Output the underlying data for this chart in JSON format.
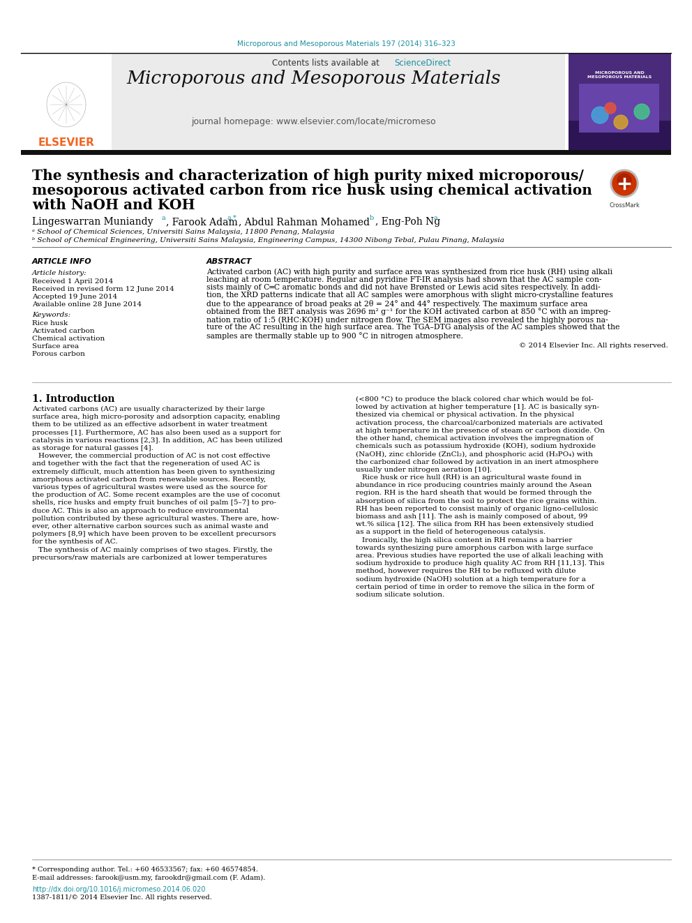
{
  "journal_ref": "Microporous and Mesoporous Materials 197 (2014) 316–323",
  "journal_ref_color": "#1a8fa0",
  "sciencedirect_color": "#1a8fa0",
  "journal_title": "Microporous and Mesoporous Materials",
  "elsevier_color": "#f26522",
  "paper_title_line1": "The synthesis and characterization of high purity mixed microporous/",
  "paper_title_line2": "mesoporous activated carbon from rice husk using chemical activation",
  "paper_title_line3": "with NaOH and KOH",
  "affil_a": "ᵃ School of Chemical Sciences, Universiti Sains Malaysia, 11800 Penang, Malaysia",
  "affil_b": "ᵇ School of Chemical Engineering, Universiti Sains Malaysia, Engineering Campus, 14300 Nibong Tebal, Pulau Pinang, Malaysia",
  "received1": "Received 1 April 2014",
  "received2": "Received in revised form 12 June 2014",
  "accepted": "Accepted 19 June 2014",
  "available": "Available online 28 June 2014",
  "keyword1": "Rice husk",
  "keyword2": "Activated carbon",
  "keyword3": "Chemical activation",
  "keyword4": "Surface area",
  "keyword5": "Porous carbon",
  "abstract_text": "Activated carbon (AC) with high purity and surface area was synthesized from rice husk (RH) using alkali\nleaching at room temperature. Regular and pyridine FT-IR analysis had shown that the AC sample con-\nsists mainly of C═C aromatic bonds and did not have Brønsted or Lewis acid sites respectively. In addi-\ntion, the XRD patterns indicate that all AC samples were amorphous with slight micro-crystalline features\ndue to the appearance of broad peaks at 2θ = 24° and 44° respectively. The maximum surface area\nobtained from the BET analysis was 2696 m² g⁻¹ for the KOH activated carbon at 850 °C with an impreg-\nnation ratio of 1:5 (RHC:KOH) under nitrogen flow. The SEM images also revealed the highly porous na-\nture of the AC resulting in the high surface area. The TGA–DTG analysis of the AC samples showed that the\nsamples are thermally stable up to 900 °C in nitrogen atmosphere.",
  "copyright": "© 2014 Elsevier Inc. All rights reserved.",
  "intro_col1": "Activated carbons (AC) are usually characterized by their large\nsurface area, high micro-porosity and adsorption capacity, enabling\nthem to be utilized as an effective adsorbent in water treatment\nprocesses [1]. Furthermore, AC has also been used as a support for\ncatalysis in various reactions [2,3]. In addition, AC has been utilized\nas storage for natural gasses [4].\n   However, the commercial production of AC is not cost effective\nand together with the fact that the regeneration of used AC is\nextremely difficult, much attention has been given to synthesizing\namorphous activated carbon from renewable sources. Recently,\nvarious types of agricultural wastes were used as the source for\nthe production of AC. Some recent examples are the use of coconut\nshells, rice husks and empty fruit bunches of oil palm [5–7] to pro-\nduce AC. This is also an approach to reduce environmental\npollution contributed by these agricultural wastes. There are, how-\never, other alternative carbon sources such as animal waste and\npolymers [8,9] which have been proven to be excellent precursors\nfor the synthesis of AC.\n   The synthesis of AC mainly comprises of two stages. Firstly, the\nprecursors/raw materials are carbonized at lower temperatures",
  "intro_col2": "(<800 °C) to produce the black colored char which would be fol-\nlowed by activation at higher temperature [1]. AC is basically syn-\nthesized via chemical or physical activation. In the physical\nactivation process, the charcoal/carbonized materials are activated\nat high temperature in the presence of steam or carbon dioxide. On\nthe other hand, chemical activation involves the impregnation of\nchemicals such as potassium hydroxide (KOH), sodium hydroxide\n(NaOH), zinc chloride (ZnCl₂), and phosphoric acid (H₃PO₄) with\nthe carbonized char followed by activation in an inert atmosphere\nusually under nitrogen aeration [10].\n   Rice husk or rice hull (RH) is an agricultural waste found in\nabundance in rice producing countries mainly around the Asean\nregion. RH is the hard sheath that would be formed through the\nabsorption of silica from the soil to protect the rice grains within.\nRH has been reported to consist mainly of organic ligno-cellulosic\nbiomass and ash [11]. The ash is mainly composed of about, 99\nwt.% silica [12]. The silica from RH has been extensively studied\nas a support in the field of heterogeneous catalysis.\n   Ironically, the high silica content in RH remains a barrier\ntowards synthesizing pure amorphous carbon with large surface\narea. Previous studies have reported the use of alkali leaching with\nsodium hydroxide to produce high quality AC from RH [11,13]. This\nmethod, however requires the RH to be refluxed with dilute\nsodium hydroxide (NaOH) solution at a high temperature for a\ncertain period of time in order to remove the silica in the form of\nsodium silicate solution.",
  "footnote_star": "* Corresponding author. Tel.: +60 46533567; fax: +60 46574854.",
  "footnote_email": "E-mail addresses: farook@usm.my, farookdr@gmail.com (F. Adam).",
  "footnote_doi": "http://dx.doi.org/10.1016/j.micromeso.2014.06.020",
  "footnote_issn": "1387-1811/© 2014 Elsevier Inc. All rights reserved.",
  "background_color": "#ffffff"
}
